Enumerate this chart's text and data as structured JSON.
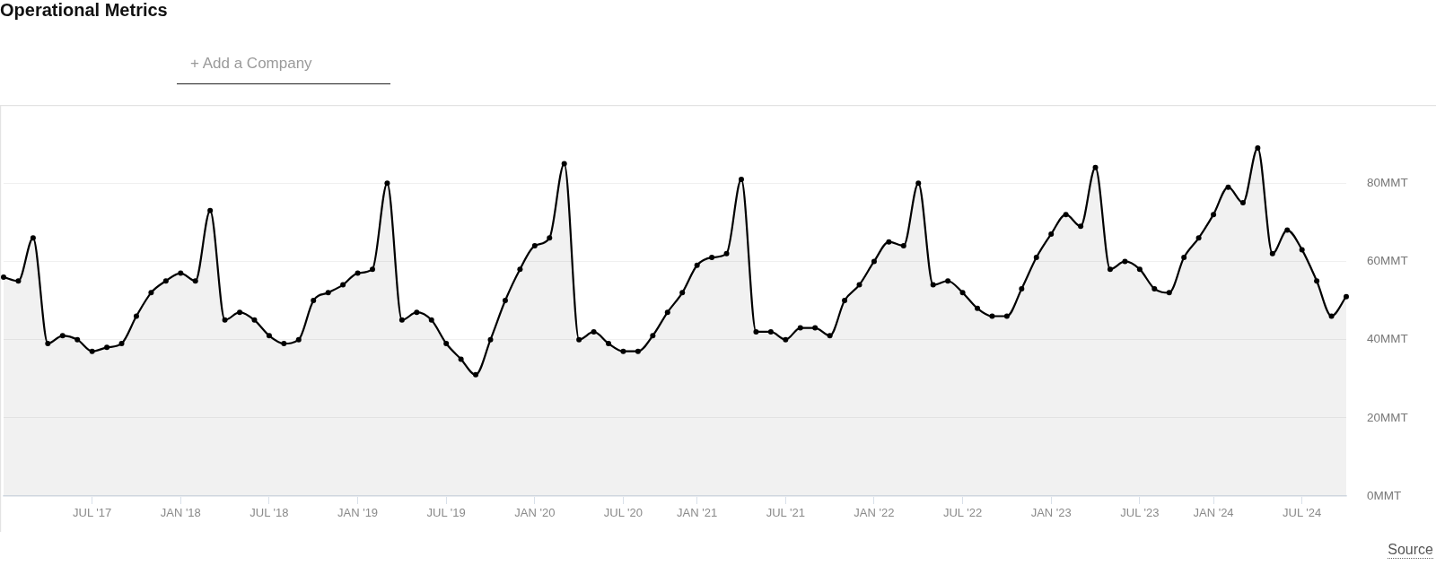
{
  "chart_data": {
    "type": "area",
    "title": "Operational Metrics",
    "categories": [
      null,
      null,
      null,
      null,
      null,
      null,
      "JUL '17",
      null,
      null,
      null,
      null,
      null,
      "JAN '18",
      null,
      null,
      null,
      null,
      null,
      "JUL '18",
      null,
      null,
      null,
      null,
      null,
      "JAN '19",
      null,
      null,
      null,
      null,
      null,
      "JUL '19",
      null,
      null,
      null,
      null,
      null,
      "JAN '20",
      null,
      null,
      null,
      null,
      null,
      "JUL '20",
      null,
      null,
      null,
      null,
      "JAN '21",
      null,
      null,
      null,
      null,
      null,
      "JUL '21",
      null,
      null,
      null,
      null,
      null,
      "JAN '22",
      null,
      null,
      null,
      null,
      null,
      "JUL '22",
      null,
      null,
      null,
      null,
      null,
      "JAN '23",
      null,
      null,
      null,
      null,
      null,
      "JUL '23",
      null,
      null,
      null,
      null,
      "JAN '24",
      null,
      null,
      null,
      null,
      null,
      "JUL '24",
      null,
      null,
      null
    ],
    "values": [
      56,
      55,
      66,
      39,
      41,
      40,
      37,
      38,
      39,
      46,
      52,
      55,
      57,
      55,
      73,
      45,
      47,
      45,
      41,
      39,
      40,
      50,
      52,
      54,
      57,
      58,
      80,
      45,
      47,
      45,
      39,
      35,
      31,
      40,
      50,
      58,
      64,
      66,
      85,
      40,
      42,
      39,
      37,
      37,
      41,
      47,
      52,
      59,
      61,
      62,
      81,
      42,
      42,
      40,
      43,
      43,
      41,
      50,
      54,
      60,
      65,
      64,
      80,
      54,
      55,
      52,
      48,
      46,
      46,
      53,
      61,
      67,
      72,
      69,
      84,
      58,
      60,
      58,
      53,
      52,
      61,
      66,
      72,
      79,
      75,
      89,
      62,
      68,
      63,
      55,
      46,
      51
    ],
    "color": "#000000",
    "ylim": [
      0,
      100
    ],
    "yticks": [
      {
        "value": 0,
        "label": "0MMT"
      },
      {
        "value": 20,
        "label": "20MMT"
      },
      {
        "value": 40,
        "label": "40MMT"
      },
      {
        "value": 60,
        "label": "60MMT"
      },
      {
        "value": 80,
        "label": "80MMT"
      }
    ],
    "grid": "y",
    "marker": "circle",
    "line_style": "solid",
    "annotations": [
      "+ Add a Company",
      "Source"
    ]
  }
}
